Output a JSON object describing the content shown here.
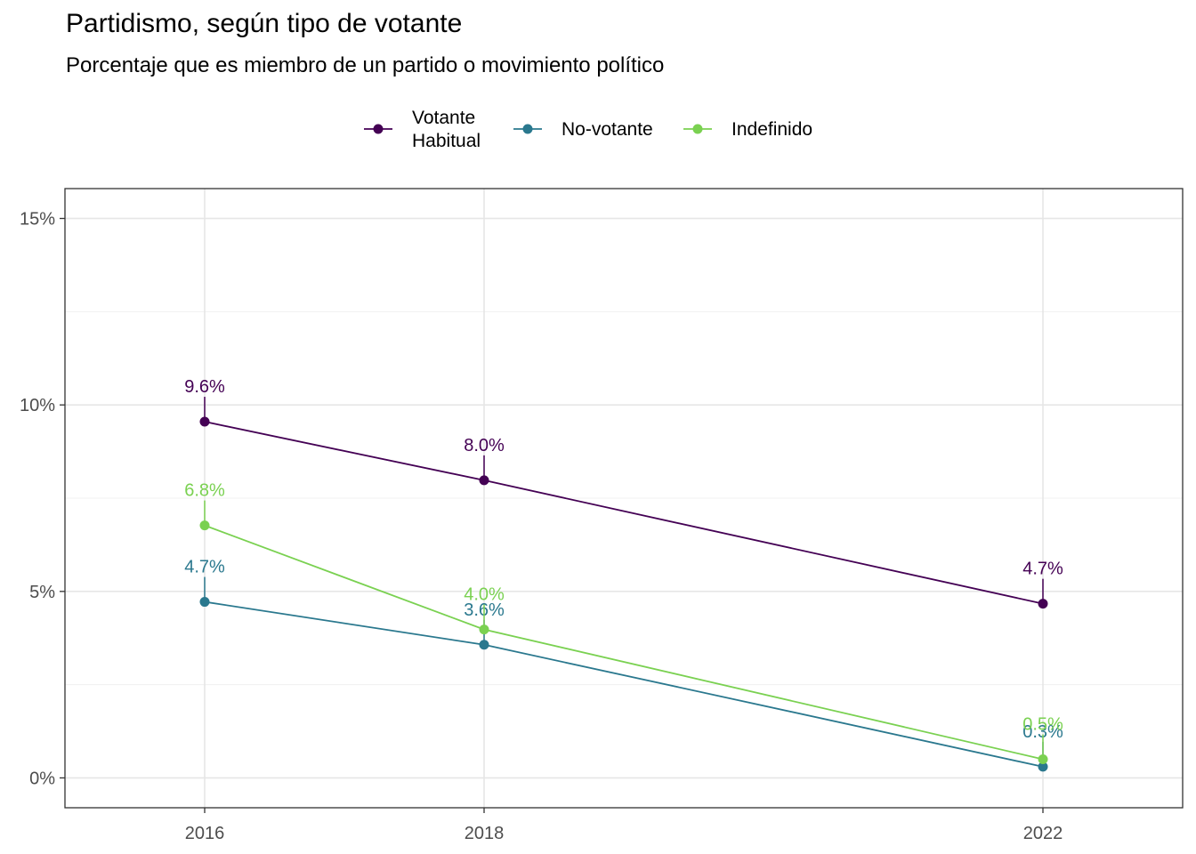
{
  "chart_data": {
    "type": "line",
    "title": "Partidismo, según tipo de votante",
    "subtitle": "Porcentaje que es miembro de un partido o movimiento político",
    "xlabel": "",
    "ylabel": "",
    "categories": [
      "2016",
      "2018",
      "2022"
    ],
    "ylim": [
      -0.8,
      15.8
    ],
    "y_ticks": [
      0,
      5,
      10,
      15
    ],
    "y_tick_labels": [
      "0%",
      "5%",
      "10%",
      "15%"
    ],
    "grid": true,
    "legend_position": "top",
    "series": [
      {
        "name": "Votante\nHabitual",
        "name_lines": [
          "Votante",
          "Habitual"
        ],
        "color": "#440154",
        "values": [
          9.55,
          7.98,
          4.67
        ],
        "labels": [
          "9.6%",
          "8.0%",
          "4.7%"
        ]
      },
      {
        "name": "No-votante",
        "name_lines": [
          "No-votante"
        ],
        "color": "#2A788E",
        "values": [
          4.72,
          3.57,
          0.3
        ],
        "labels": [
          "4.7%",
          "3.6%",
          "0.3%"
        ]
      },
      {
        "name": "Indefinido",
        "name_lines": [
          "Indefinido"
        ],
        "color": "#7AD151",
        "values": [
          6.77,
          3.98,
          0.5
        ],
        "labels": [
          "6.8%",
          "4.0%",
          "0.5%"
        ]
      }
    ]
  }
}
